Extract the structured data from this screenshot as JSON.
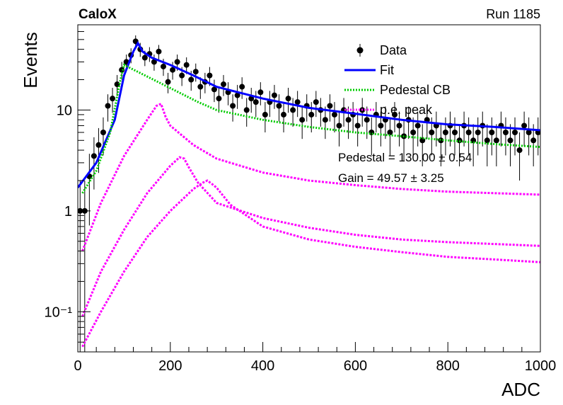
{
  "chart_data": {
    "type": "scatter",
    "title": "CaloX",
    "run_label": "Run 1185",
    "xlabel": "ADC",
    "ylabel": "Events",
    "xlim": [
      0,
      1000
    ],
    "ylim": [
      0.04,
      70
    ],
    "yscale": "log",
    "grid": false,
    "legend_position": "top-right",
    "x_ticks": [
      0,
      200,
      400,
      600,
      800,
      1000
    ],
    "x_tick_labels": [
      "0",
      "200",
      "400",
      "600",
      "800",
      "1000"
    ],
    "y_ticks": [
      0.1,
      1,
      10
    ],
    "y_tick_labels": [
      "10⁻¹",
      "1",
      "10"
    ],
    "legend": [
      {
        "label": "Data",
        "color": "#000000",
        "style": "marker"
      },
      {
        "label": "Fit",
        "color": "#0000ff",
        "style": "solid"
      },
      {
        "label": "Pedestal CB",
        "color": "#00cc00",
        "style": "dotted"
      },
      {
        "label": "p.e. peak",
        "color": "#ff00ff",
        "style": "dotted"
      }
    ],
    "annotations": [
      "Pedestal = 130.00 ± 0.54",
      "Gain = 49.57 ± 3.25"
    ],
    "data_points": [
      {
        "x": 5,
        "y": 1.0
      },
      {
        "x": 15,
        "y": 1.0
      },
      {
        "x": 25,
        "y": 2.2
      },
      {
        "x": 35,
        "y": 3.5
      },
      {
        "x": 45,
        "y": 4.5
      },
      {
        "x": 55,
        "y": 6.0
      },
      {
        "x": 65,
        "y": 11.0
      },
      {
        "x": 75,
        "y": 13.0
      },
      {
        "x": 85,
        "y": 18.0
      },
      {
        "x": 95,
        "y": 25.0
      },
      {
        "x": 105,
        "y": 30.0
      },
      {
        "x": 115,
        "y": 35.0
      },
      {
        "x": 125,
        "y": 48.0
      },
      {
        "x": 135,
        "y": 40.0
      },
      {
        "x": 145,
        "y": 33.0
      },
      {
        "x": 155,
        "y": 36.0
      },
      {
        "x": 165,
        "y": 30.0
      },
      {
        "x": 175,
        "y": 38.0
      },
      {
        "x": 185,
        "y": 27.0
      },
      {
        "x": 195,
        "y": 19.0
      },
      {
        "x": 205,
        "y": 25.0
      },
      {
        "x": 215,
        "y": 30.0
      },
      {
        "x": 225,
        "y": 22.0
      },
      {
        "x": 235,
        "y": 28.0
      },
      {
        "x": 245,
        "y": 20.0
      },
      {
        "x": 255,
        "y": 24.0
      },
      {
        "x": 265,
        "y": 17.0
      },
      {
        "x": 275,
        "y": 19.0
      },
      {
        "x": 285,
        "y": 22.0
      },
      {
        "x": 295,
        "y": 16.0
      },
      {
        "x": 305,
        "y": 13.0
      },
      {
        "x": 315,
        "y": 18.0
      },
      {
        "x": 325,
        "y": 15.0
      },
      {
        "x": 335,
        "y": 11.0
      },
      {
        "x": 345,
        "y": 14.0
      },
      {
        "x": 355,
        "y": 17.0
      },
      {
        "x": 365,
        "y": 10.0
      },
      {
        "x": 375,
        "y": 13.0
      },
      {
        "x": 385,
        "y": 12.0
      },
      {
        "x": 395,
        "y": 15.0
      },
      {
        "x": 405,
        "y": 9.0
      },
      {
        "x": 415,
        "y": 12.0
      },
      {
        "x": 425,
        "y": 14.0
      },
      {
        "x": 435,
        "y": 11.0
      },
      {
        "x": 445,
        "y": 9.0
      },
      {
        "x": 455,
        "y": 13.0
      },
      {
        "x": 465,
        "y": 10.0
      },
      {
        "x": 475,
        "y": 12.0
      },
      {
        "x": 485,
        "y": 8.0
      },
      {
        "x": 495,
        "y": 11.0
      },
      {
        "x": 505,
        "y": 9.0
      },
      {
        "x": 515,
        "y": 12.0
      },
      {
        "x": 525,
        "y": 10.0
      },
      {
        "x": 535,
        "y": 8.0
      },
      {
        "x": 545,
        "y": 11.0
      },
      {
        "x": 555,
        "y": 9.0
      },
      {
        "x": 565,
        "y": 7.0
      },
      {
        "x": 575,
        "y": 10.0
      },
      {
        "x": 585,
        "y": 8.0
      },
      {
        "x": 595,
        "y": 9.0
      },
      {
        "x": 605,
        "y": 7.0
      },
      {
        "x": 615,
        "y": 10.0
      },
      {
        "x": 625,
        "y": 8.0
      },
      {
        "x": 635,
        "y": 6.0
      },
      {
        "x": 645,
        "y": 9.0
      },
      {
        "x": 655,
        "y": 7.0
      },
      {
        "x": 665,
        "y": 8.0
      },
      {
        "x": 675,
        "y": 6.0
      },
      {
        "x": 685,
        "y": 9.0
      },
      {
        "x": 695,
        "y": 7.0
      },
      {
        "x": 705,
        "y": 5.5
      },
      {
        "x": 715,
        "y": 8.0
      },
      {
        "x": 725,
        "y": 6.0
      },
      {
        "x": 735,
        "y": 7.0
      },
      {
        "x": 745,
        "y": 5.0
      },
      {
        "x": 755,
        "y": 8.0
      },
      {
        "x": 765,
        "y": 6.0
      },
      {
        "x": 775,
        "y": 7.0
      },
      {
        "x": 785,
        "y": 5.0
      },
      {
        "x": 795,
        "y": 6.0
      },
      {
        "x": 805,
        "y": 7.0
      },
      {
        "x": 815,
        "y": 6.0
      },
      {
        "x": 825,
        "y": 5.0
      },
      {
        "x": 835,
        "y": 7.0
      },
      {
        "x": 845,
        "y": 6.0
      },
      {
        "x": 855,
        "y": 5.0
      },
      {
        "x": 865,
        "y": 6.0
      },
      {
        "x": 875,
        "y": 7.0
      },
      {
        "x": 885,
        "y": 5.0
      },
      {
        "x": 895,
        "y": 6.0
      },
      {
        "x": 905,
        "y": 5.0
      },
      {
        "x": 915,
        "y": 7.0
      },
      {
        "x": 925,
        "y": 6.0
      },
      {
        "x": 935,
        "y": 5.0
      },
      {
        "x": 945,
        "y": 6.0
      },
      {
        "x": 955,
        "y": 4.0
      },
      {
        "x": 965,
        "y": 7.0
      },
      {
        "x": 975,
        "y": 6.0
      },
      {
        "x": 985,
        "y": 5.0
      },
      {
        "x": 995,
        "y": 6.0
      }
    ],
    "series": [
      {
        "name": "Fit",
        "color": "#0000ff",
        "x": [
          0,
          40,
          80,
          100,
          120,
          130,
          140,
          160,
          200,
          250,
          300,
          400,
          500,
          600,
          700,
          800,
          900,
          1000
        ],
        "y": [
          1.7,
          3.0,
          8.0,
          22.0,
          38.0,
          46.0,
          38.0,
          33.0,
          28.0,
          22.0,
          17.0,
          13.0,
          10.5,
          9.2,
          8.0,
          7.2,
          6.8,
          6.3
        ]
      },
      {
        "name": "Pedestal CB",
        "color": "#00cc00",
        "x": [
          10,
          40,
          70,
          90,
          100,
          260,
          300,
          400,
          500,
          600,
          700,
          800,
          900,
          1000
        ],
        "y": [
          1.5,
          2.5,
          6.0,
          18.0,
          28.0,
          12.0,
          10.0,
          8.0,
          6.8,
          6.0,
          5.5,
          5.0,
          4.6,
          4.3
        ]
      },
      {
        "name": "p.e. peak",
        "color": "#ff00ff",
        "x": [
          10,
          50,
          100,
          150,
          170,
          180,
          190,
          200,
          250,
          300,
          400,
          500,
          600,
          700,
          800,
          900,
          1000
        ],
        "y": [
          0.4,
          1.2,
          3.5,
          8.0,
          11.0,
          11.5,
          8.5,
          7.0,
          4.5,
          3.3,
          2.4,
          2.0,
          1.8,
          1.65,
          1.55,
          1.5,
          1.45
        ]
      },
      {
        "name": "p.e. peak",
        "color": "#ff00ff",
        "x": [
          10,
          50,
          100,
          150,
          200,
          220,
          230,
          240,
          260,
          300,
          400,
          500,
          600,
          700,
          800,
          900,
          1000
        ],
        "y": [
          0.09,
          0.25,
          0.65,
          1.5,
          2.8,
          3.4,
          3.3,
          2.7,
          1.9,
          1.2,
          0.85,
          0.68,
          0.58,
          0.52,
          0.49,
          0.47,
          0.45
        ]
      },
      {
        "name": "p.e. peak",
        "color": "#ff00ff",
        "x": [
          10,
          50,
          100,
          150,
          200,
          250,
          270,
          280,
          290,
          300,
          330,
          400,
          500,
          600,
          700,
          800,
          900,
          1000
        ],
        "y": [
          0.045,
          0.1,
          0.25,
          0.55,
          1.0,
          1.65,
          1.9,
          2.0,
          1.85,
          1.7,
          1.15,
          0.7,
          0.52,
          0.44,
          0.39,
          0.35,
          0.33,
          0.31
        ]
      }
    ]
  }
}
